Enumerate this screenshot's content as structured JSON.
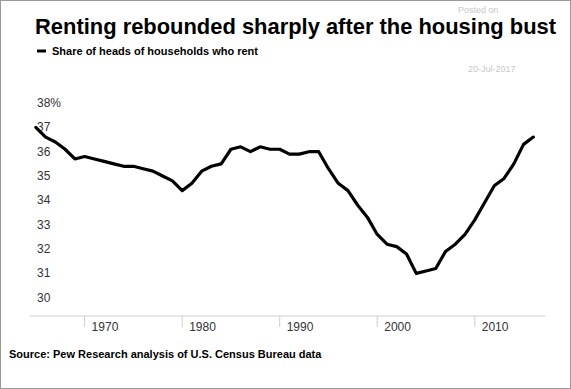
{
  "chart_data": {
    "type": "line",
    "title": "Renting rebounded sharply after the housing bust",
    "source": "Source: Pew Research analysis of U.S. Census Bureau data",
    "annotations": [
      "Posted on",
      "20-Jul-2017"
    ],
    "x": [
      1965,
      1966,
      1967,
      1968,
      1969,
      1970,
      1971,
      1972,
      1973,
      1974,
      1975,
      1976,
      1977,
      1978,
      1979,
      1980,
      1981,
      1982,
      1983,
      1984,
      1985,
      1986,
      1987,
      1988,
      1989,
      1990,
      1991,
      1992,
      1993,
      1994,
      1995,
      1996,
      1997,
      1998,
      1999,
      2000,
      2001,
      2002,
      2003,
      2004,
      2005,
      2006,
      2007,
      2008,
      2009,
      2010,
      2011,
      2012,
      2013,
      2014,
      2015,
      2016
    ],
    "series": [
      {
        "name": "Share of heads of households who rent",
        "color": "#000000",
        "values": [
          37.0,
          36.6,
          36.4,
          36.1,
          35.7,
          35.8,
          35.7,
          35.6,
          35.5,
          35.4,
          35.4,
          35.3,
          35.2,
          35.0,
          34.8,
          34.4,
          34.7,
          35.2,
          35.4,
          35.5,
          36.1,
          36.2,
          36.0,
          36.2,
          36.1,
          36.1,
          35.9,
          35.9,
          36.0,
          36.0,
          35.3,
          34.7,
          34.4,
          33.8,
          33.3,
          32.6,
          32.2,
          32.1,
          31.8,
          31.0,
          31.1,
          31.2,
          31.9,
          32.2,
          32.6,
          33.2,
          33.9,
          34.6,
          34.9,
          35.5,
          36.3,
          36.6
        ]
      }
    ],
    "xlim": [
      1964.4,
      2017.2
    ],
    "xticks": [
      1970,
      1980,
      1990,
      2000,
      2010
    ],
    "ylim": [
      29.25,
      38
    ],
    "yticks": [
      30,
      31,
      32,
      33,
      34,
      35,
      36,
      37,
      {
        "value": 38,
        "label": "38%"
      }
    ],
    "grid": false
  }
}
